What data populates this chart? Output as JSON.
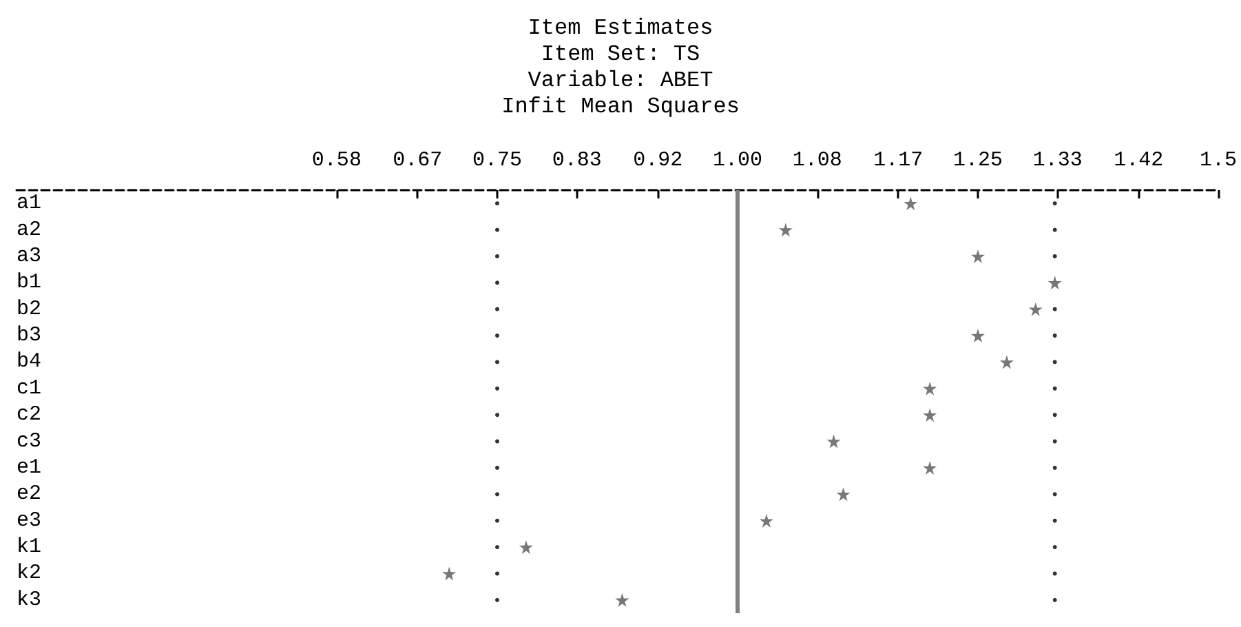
{
  "chart_data": {
    "type": "scatter",
    "title": "Item Estimates",
    "subtitle": "Item Set: TS\nVariable: ABET\nInfit Mean Squares",
    "orientation": "horizontal",
    "categories": [
      "a1",
      "a2",
      "a3",
      "b1",
      "b2",
      "b3",
      "b4",
      "c1",
      "c2",
      "c3",
      "e1",
      "e2",
      "e3",
      "k1",
      "k2",
      "k3"
    ],
    "series": [
      {
        "color": "#000000",
        "marker": "circle",
        "values": [
          0.75,
          0.75,
          0.75,
          0.75,
          0.75,
          0.75,
          0.75,
          0.75,
          0.75,
          0.75,
          0.75,
          0.75,
          0.75,
          0.75,
          0.75,
          0.75
        ]
      },
      {
        "color": "#000000",
        "marker": "circle",
        "values": [
          1.33,
          1.33,
          1.33,
          null,
          1.33,
          1.33,
          1.33,
          1.33,
          1.33,
          1.33,
          1.33,
          1.33,
          1.33,
          1.33,
          1.33,
          1.33
        ]
      },
      {
        "color": "#555555",
        "marker": "star",
        "values": [
          1.18,
          1.05,
          1.25,
          1.33,
          1.31,
          1.25,
          1.28,
          1.2,
          1.2,
          1.1,
          1.2,
          1.11,
          1.03,
          0.78,
          0.7,
          0.88
        ]
      }
    ],
    "xlim": [
      0.25,
      1.5
    ],
    "xticks": [
      {
        "value": 0.583,
        "label": "0.58"
      },
      {
        "value": 0.667,
        "label": "0.67"
      },
      {
        "value": 0.75,
        "label": "0.75"
      },
      {
        "value": 0.833,
        "label": "0.83"
      },
      {
        "value": 0.917,
        "label": "0.92"
      },
      {
        "value": 1,
        "label": "1.00"
      },
      {
        "value": 1.083,
        "label": "1.08"
      },
      {
        "value": 1.167,
        "label": "1.17"
      },
      {
        "value": 1.25,
        "label": "1.25"
      },
      {
        "value": 1.333,
        "label": "1.33"
      },
      {
        "value": 1.417,
        "label": "1.42"
      },
      1.5
    ],
    "ref_lines": [
      {
        "axis": "x",
        "value": 1,
        "label": null,
        "color": "#808080",
        "line_style": "solid"
      }
    ]
  }
}
